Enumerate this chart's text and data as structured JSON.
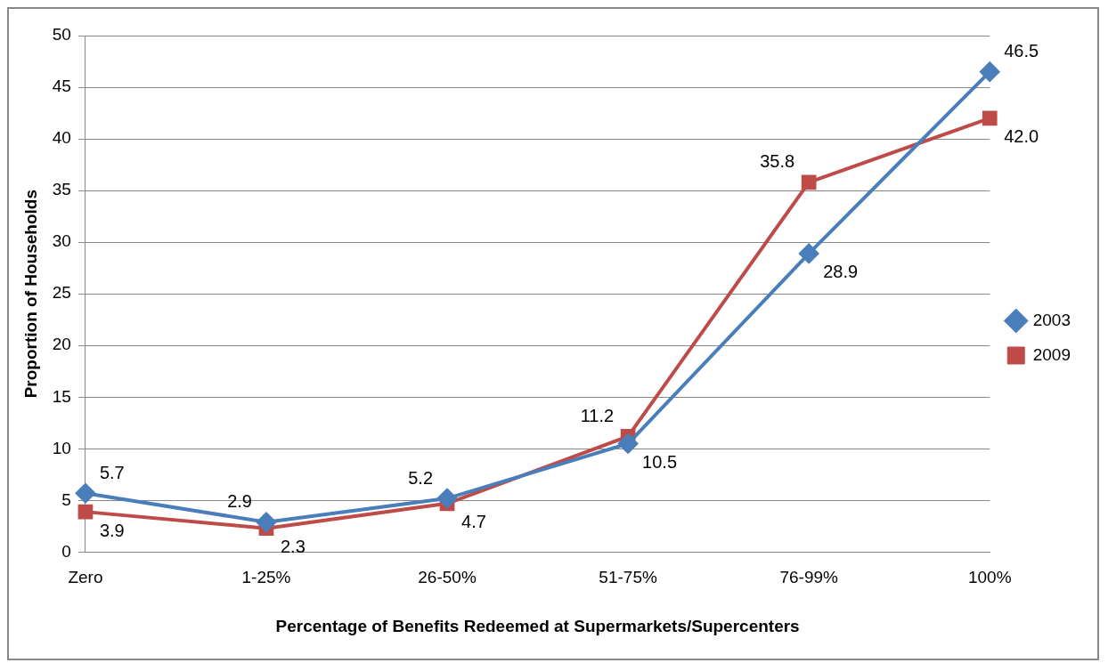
{
  "chart_data": {
    "type": "line",
    "xlabel": "Percentage of Benefits Redeemed at Supermarkets/Supercenters",
    "ylabel": "Proportion of Households",
    "categories": [
      "Zero",
      "1-25%",
      "26-50%",
      "51-75%",
      "76-99%",
      "100%"
    ],
    "series": [
      {
        "name": "2003",
        "color": "#4a7ebb",
        "marker": "diamond",
        "values": [
          5.7,
          2.9,
          5.2,
          10.5,
          28.9,
          46.5
        ],
        "value_labels": [
          "5.7",
          "2.9",
          "5.2",
          "10.5",
          "28.9",
          "46.5"
        ]
      },
      {
        "name": "2009",
        "color": "#be4b48",
        "marker": "square",
        "values": [
          3.9,
          2.3,
          4.7,
          11.2,
          35.8,
          42.0
        ],
        "value_labels": [
          "3.9",
          "2.3",
          "4.7",
          "11.2",
          "35.8",
          "42.0"
        ]
      }
    ],
    "ylim": [
      0,
      50
    ],
    "yticks": [
      0,
      5,
      10,
      15,
      20,
      25,
      30,
      35,
      40,
      45,
      50
    ],
    "grid": "y",
    "legend": "right",
    "line_style": "solid"
  }
}
